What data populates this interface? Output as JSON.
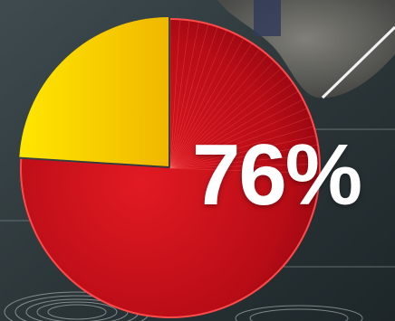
{
  "chart_data": {
    "type": "pie",
    "title": "",
    "slices": [
      {
        "value": 76,
        "color": "#c8101c"
      },
      {
        "value": 24,
        "color": "#f5c400"
      }
    ],
    "center_label": "76%"
  }
}
